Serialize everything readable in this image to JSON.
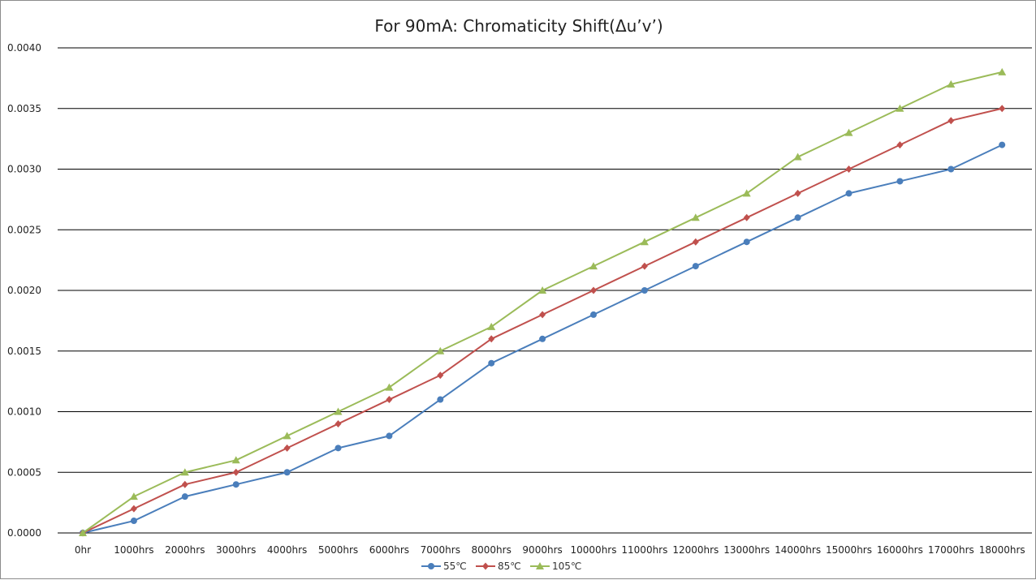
{
  "chart_data": {
    "type": "line",
    "title": "For 90mA: Chromaticity Shift(Δu’v’)",
    "xlabel": "",
    "ylabel": "",
    "categories": [
      "0hr",
      "1000hrs",
      "2000hrs",
      "3000hrs",
      "4000hrs",
      "5000hrs",
      "6000hrs",
      "7000hrs",
      "8000hrs",
      "9000hrs",
      "10000hrs",
      "11000hrs",
      "12000hrs",
      "13000hrs",
      "14000hrs",
      "15000hrs",
      "16000hrs",
      "17000hrs",
      "18000hrs"
    ],
    "ylim": [
      0,
      0.004
    ],
    "yticks": [
      "0.0000",
      "0.0005",
      "0.0010",
      "0.0015",
      "0.0020",
      "0.0025",
      "0.0030",
      "0.0035",
      "0.0040"
    ],
    "grid": true,
    "legend_position": "bottom",
    "series": [
      {
        "name": "55℃",
        "color": "#4a7ebb",
        "marker": "circle",
        "values": [
          0.0,
          0.0001,
          0.0003,
          0.0004,
          0.0005,
          0.0007,
          0.0008,
          0.0011,
          0.0014,
          0.0016,
          0.0018,
          0.002,
          0.0022,
          0.0024,
          0.0026,
          0.0028,
          0.0029,
          0.003,
          0.0032
        ]
      },
      {
        "name": "85℃",
        "color": "#c0504d",
        "marker": "diamond",
        "values": [
          0.0,
          0.0002,
          0.0004,
          0.0005,
          0.0007,
          0.0009,
          0.0011,
          0.0013,
          0.0016,
          0.0018,
          0.002,
          0.0022,
          0.0024,
          0.0026,
          0.0028,
          0.003,
          0.0032,
          0.0034,
          0.0035
        ]
      },
      {
        "name": "105℃",
        "color": "#9bbb59",
        "marker": "triangle",
        "values": [
          0.0,
          0.0003,
          0.0005,
          0.0006,
          0.0008,
          0.001,
          0.0012,
          0.0015,
          0.0017,
          0.002,
          0.0022,
          0.0024,
          0.0026,
          0.0028,
          0.0031,
          0.0033,
          0.0035,
          0.0037,
          0.0038
        ]
      }
    ]
  }
}
